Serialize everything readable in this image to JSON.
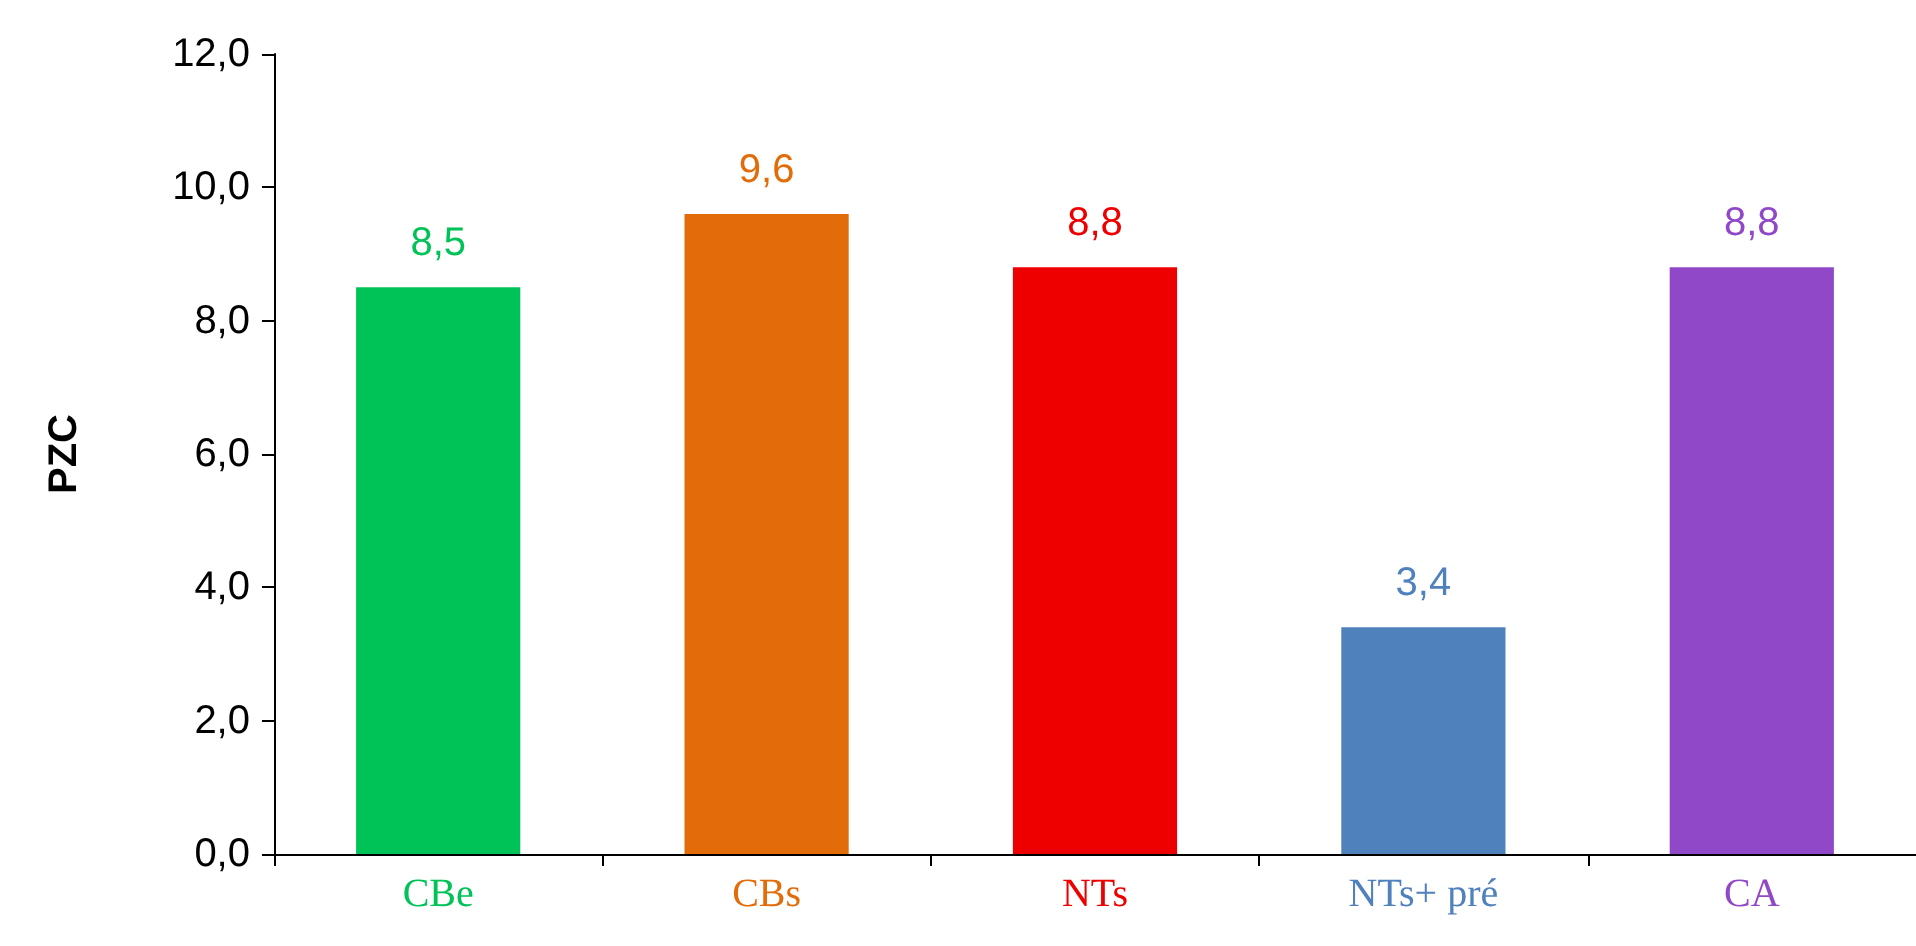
{
  "chart_data": {
    "type": "bar",
    "ylabel": "PZC",
    "categories": [
      "CBe",
      "CBs",
      "NTs",
      "NTs+ pré",
      "CA"
    ],
    "values": [
      8.5,
      9.6,
      8.8,
      3.4,
      8.8
    ],
    "colors": [
      "#00c358",
      "#e36c0a",
      "#ee0000",
      "#4f81bd",
      "#9148c8"
    ],
    "value_labels": [
      "8,5",
      "9,6",
      "8,8",
      "3,4",
      "8,8"
    ],
    "ylim": [
      0,
      12
    ],
    "yticks": [
      {
        "value": 0,
        "label": "0,0"
      },
      {
        "value": 2,
        "label": "2,0"
      },
      {
        "value": 4,
        "label": "4,0"
      },
      {
        "value": 6,
        "label": "6,0"
      },
      {
        "value": 8,
        "label": "8,0"
      },
      {
        "value": 10,
        "label": "10,0"
      },
      {
        "value": 12,
        "label": "12,0"
      }
    ],
    "grid": false
  }
}
